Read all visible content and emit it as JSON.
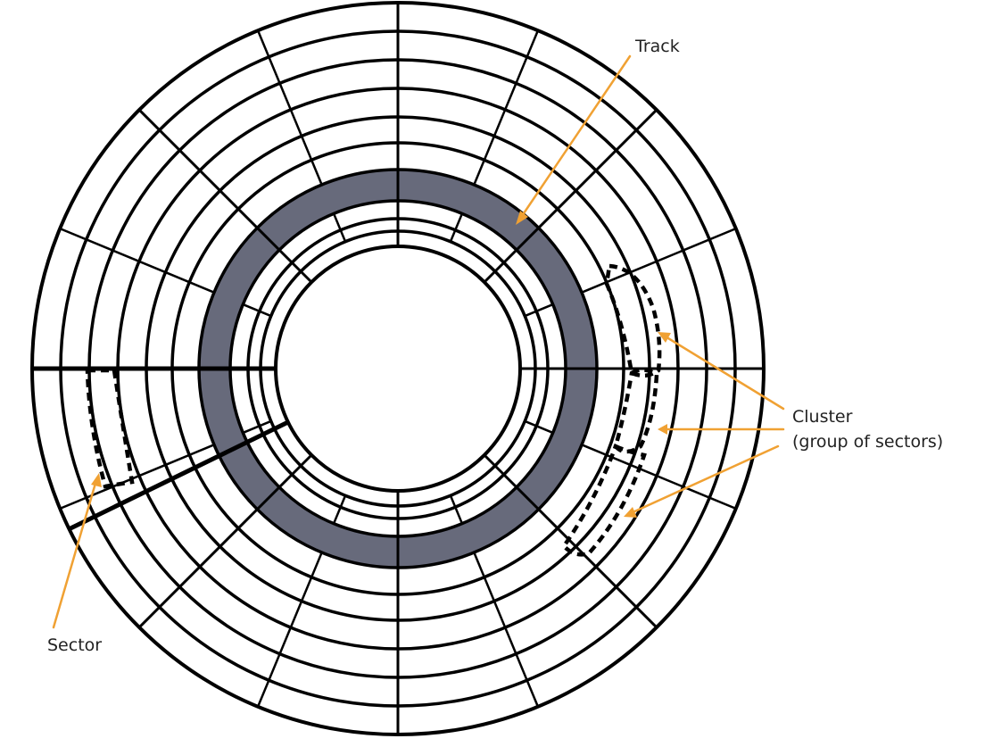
{
  "diagram": {
    "colors": {
      "stroke": "#000000",
      "highlighted_track_fill": "#676a7b",
      "leader_line": "#f0a133",
      "background": "#ffffff"
    },
    "labels": {
      "track": "Track",
      "cluster_line1": "Cluster",
      "cluster_line2": "(group of sectors)",
      "sector": "Sector"
    }
  }
}
